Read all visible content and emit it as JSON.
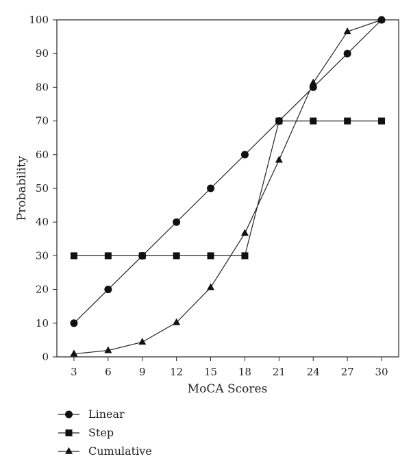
{
  "chart_data": {
    "type": "line",
    "title": "",
    "xlabel": "MoCA Scores",
    "ylabel": "Probability",
    "x": [
      3,
      6,
      9,
      12,
      15,
      18,
      21,
      24,
      27,
      30
    ],
    "xlim": [
      1.5,
      31.5
    ],
    "ylim": [
      0,
      100
    ],
    "xticks": [
      3,
      6,
      9,
      12,
      15,
      18,
      21,
      24,
      27,
      30
    ],
    "yticks": [
      0,
      10,
      20,
      30,
      40,
      50,
      60,
      70,
      80,
      90,
      100
    ],
    "grid": false,
    "legend_position": "bottom-left",
    "series": [
      {
        "name": "Linear",
        "marker": "circle",
        "values": [
          10,
          20,
          30,
          40,
          50,
          60,
          70,
          80,
          90,
          100
        ]
      },
      {
        "name": "Step",
        "marker": "square",
        "values": [
          30,
          30,
          30,
          30,
          30,
          30,
          70,
          70,
          70,
          70
        ]
      },
      {
        "name": "Cumulative",
        "marker": "triangle",
        "values": [
          0.9,
          1.9,
          4.4,
          10.2,
          20.6,
          36.7,
          58.4,
          81.3,
          96.5,
          100
        ]
      }
    ]
  },
  "colors": {
    "line": "#222222",
    "marker": "#111111"
  }
}
